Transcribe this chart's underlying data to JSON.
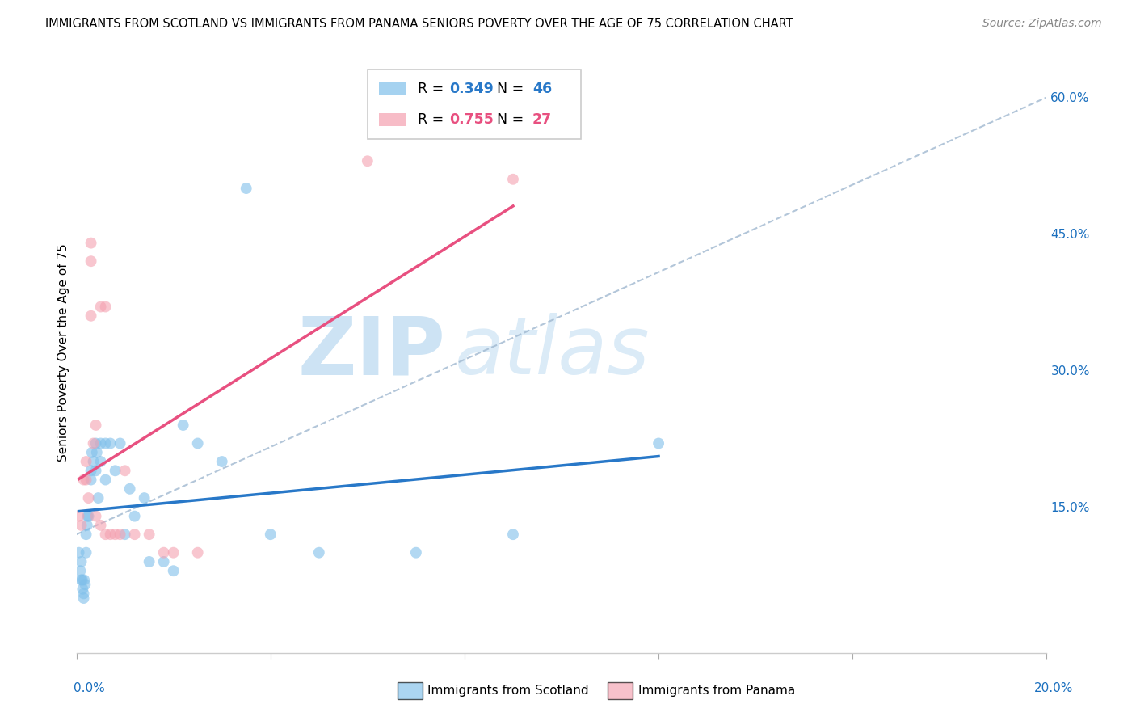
{
  "title": "IMMIGRANTS FROM SCOTLAND VS IMMIGRANTS FROM PANAMA SENIORS POVERTY OVER THE AGE OF 75 CORRELATION CHART",
  "source": "Source: ZipAtlas.com",
  "ylabel": "Seniors Poverty Over the Age of 75",
  "watermark_zip": "ZIP",
  "watermark_atlas": "atlas",
  "scotland_R": 0.349,
  "scotland_N": 46,
  "panama_R": 0.755,
  "panama_N": 27,
  "scotland_color": "#7fbfea",
  "panama_color": "#f4a0b0",
  "scotland_line_color": "#2878c8",
  "panama_line_color": "#e85080",
  "dashed_line_color": "#a0b8d0",
  "right_ytick_vals": [
    0.0,
    0.15,
    0.3,
    0.45,
    0.6
  ],
  "right_ytick_labels": [
    "",
    "15.0%",
    "30.0%",
    "45.0%",
    "60.0%"
  ],
  "xmin": 0.0,
  "xmax": 0.2,
  "ymin": -0.01,
  "ymax": 0.65,
  "background_color": "#ffffff",
  "grid_color": "#d8d8d8",
  "scotland_x": [
    0.0005,
    0.0008,
    0.001,
    0.001,
    0.0012,
    0.0013,
    0.0015,
    0.0015,
    0.0016,
    0.0018,
    0.002,
    0.002,
    0.0022,
    0.0023,
    0.0025,
    0.003,
    0.003,
    0.0032,
    0.0035,
    0.004,
    0.004,
    0.0042,
    0.0045,
    0.005,
    0.005,
    0.006,
    0.006,
    0.007,
    0.008,
    0.009,
    0.01,
    0.011,
    0.012,
    0.014,
    0.015,
    0.018,
    0.02,
    0.022,
    0.025,
    0.03,
    0.035,
    0.04,
    0.05,
    0.07,
    0.09,
    0.12
  ],
  "scotland_y": [
    0.1,
    0.08,
    0.09,
    0.07,
    0.07,
    0.06,
    0.055,
    0.05,
    0.07,
    0.065,
    0.12,
    0.1,
    0.13,
    0.14,
    0.14,
    0.19,
    0.18,
    0.21,
    0.2,
    0.22,
    0.19,
    0.21,
    0.16,
    0.2,
    0.22,
    0.22,
    0.18,
    0.22,
    0.19,
    0.22,
    0.12,
    0.17,
    0.14,
    0.16,
    0.09,
    0.09,
    0.08,
    0.24,
    0.22,
    0.2,
    0.5,
    0.12,
    0.1,
    0.1,
    0.12,
    0.22
  ],
  "panama_x": [
    0.0005,
    0.001,
    0.0015,
    0.002,
    0.002,
    0.0025,
    0.003,
    0.003,
    0.003,
    0.0035,
    0.004,
    0.004,
    0.005,
    0.005,
    0.006,
    0.006,
    0.007,
    0.008,
    0.009,
    0.01,
    0.012,
    0.015,
    0.018,
    0.02,
    0.025,
    0.06,
    0.09
  ],
  "panama_y": [
    0.14,
    0.13,
    0.18,
    0.2,
    0.18,
    0.16,
    0.44,
    0.42,
    0.36,
    0.22,
    0.24,
    0.14,
    0.37,
    0.13,
    0.37,
    0.12,
    0.12,
    0.12,
    0.12,
    0.19,
    0.12,
    0.12,
    0.1,
    0.1,
    0.1,
    0.53,
    0.51
  ],
  "scotland_line_x": [
    0.0,
    0.025
  ],
  "scotland_line_y": [
    0.115,
    0.235
  ],
  "panama_line_x": [
    0.0,
    0.2
  ],
  "panama_line_y": [
    0.22,
    0.65
  ]
}
